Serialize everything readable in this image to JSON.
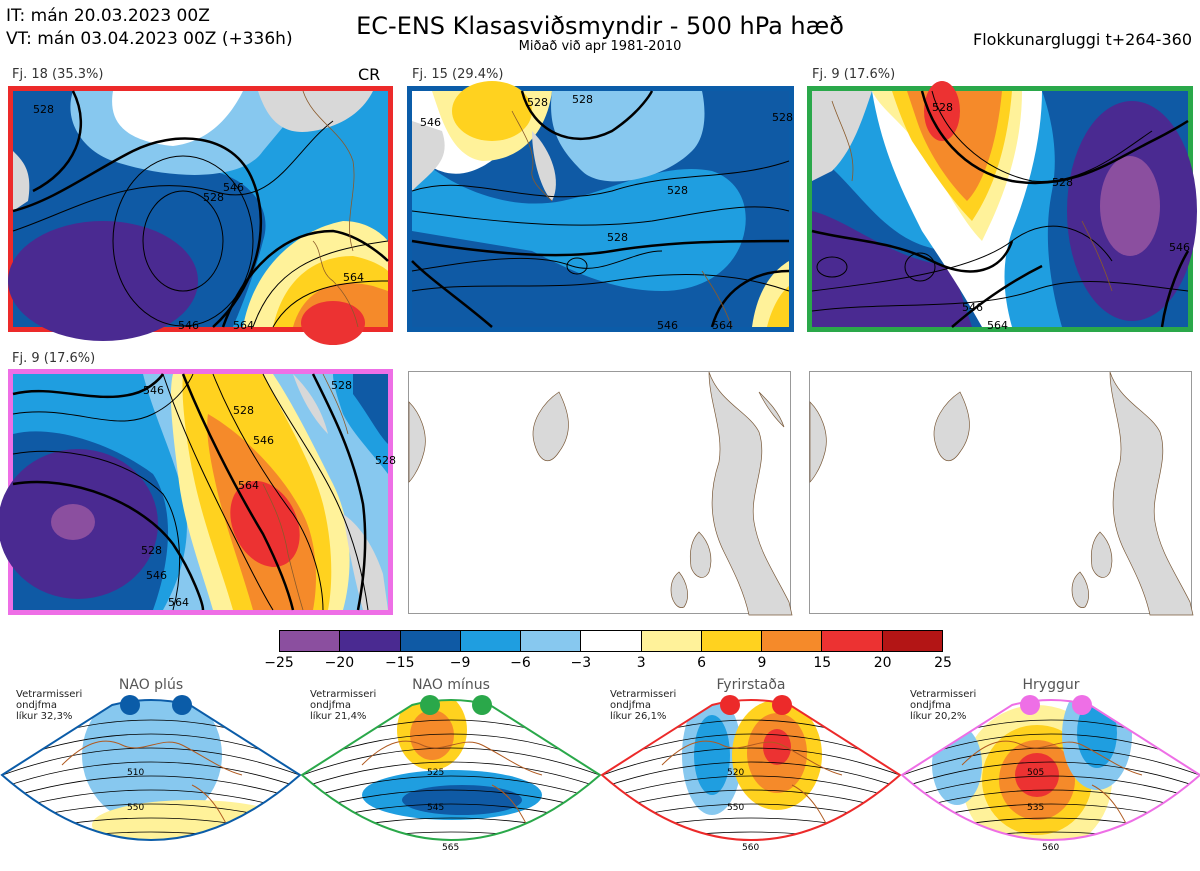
{
  "header": {
    "it_line": "IT: mán 20.03.2023 00Z",
    "vt_line": "VT: mán 03.04.2023 00Z  (+336h)",
    "title": "EC-ENS Klasasviðsmyndir - 500 hPa hæð",
    "subtitle": "Miðað við apr 1981-2010",
    "window": "Flokkunargluggi t+264-360"
  },
  "panels": [
    {
      "label": "Fj. 18 (35.3%)",
      "tag": "CR",
      "border": "#ec2a2a"
    },
    {
      "label": "Fj. 15 (29.4%)",
      "tag": "",
      "border": "#0b5ca8"
    },
    {
      "label": "Fj. 9 (17.6%)",
      "tag": "",
      "border": "#2aa84a"
    },
    {
      "label": "Fj. 9 (17.6%)",
      "tag": "",
      "border": "#ee6fe6"
    }
  ],
  "contour_labels": {
    "p1": [
      "528",
      "546",
      "528",
      "564",
      "546",
      "564"
    ],
    "p2": [
      "546",
      "528",
      "528",
      "528",
      "528",
      "546",
      "564"
    ],
    "p3": [
      "528",
      "528",
      "546",
      "546",
      "564"
    ],
    "p4": [
      "546",
      "528",
      "546",
      "564",
      "528",
      "546",
      "564",
      "528",
      "528"
    ]
  },
  "colorbar": {
    "colors": [
      "#8b4f9f",
      "#4a2a91",
      "#0f5aa5",
      "#1f9ee0",
      "#87c8ef",
      "#ffffff",
      "#fff29a",
      "#ffd21f",
      "#f58a2a",
      "#ec3232",
      "#b31515"
    ],
    "labels": [
      "−25",
      "−20",
      "−15",
      "−9",
      "−6",
      "−3",
      "3",
      "6",
      "9",
      "15",
      "20",
      "25"
    ]
  },
  "regimes": [
    {
      "title": "NAO plús",
      "note": [
        "Vetrarmisseri",
        "ondjfma",
        "líkur 32,3%"
      ],
      "color": "#0b5ca8",
      "labels": [
        "510",
        "550"
      ]
    },
    {
      "title": "NAO mínus",
      "note": [
        "Vetrarmisseri",
        "ondjfma",
        "líkur 21,4%"
      ],
      "color": "#2aa84a",
      "labels": [
        "525",
        "545",
        "565"
      ]
    },
    {
      "title": "Fyrirstaða",
      "note": [
        "Vetrarmisseri",
        "ondjfma",
        "líkur 26,1%"
      ],
      "color": "#ec2a2a",
      "labels": [
        "520",
        "550",
        "560"
      ]
    },
    {
      "title": "Hryggur",
      "note": [
        "Vetrarmisseri",
        "ondjfma",
        "líkur 20,2%"
      ],
      "color": "#ee6fe6",
      "labels": [
        "505",
        "535",
        "560"
      ]
    }
  ]
}
